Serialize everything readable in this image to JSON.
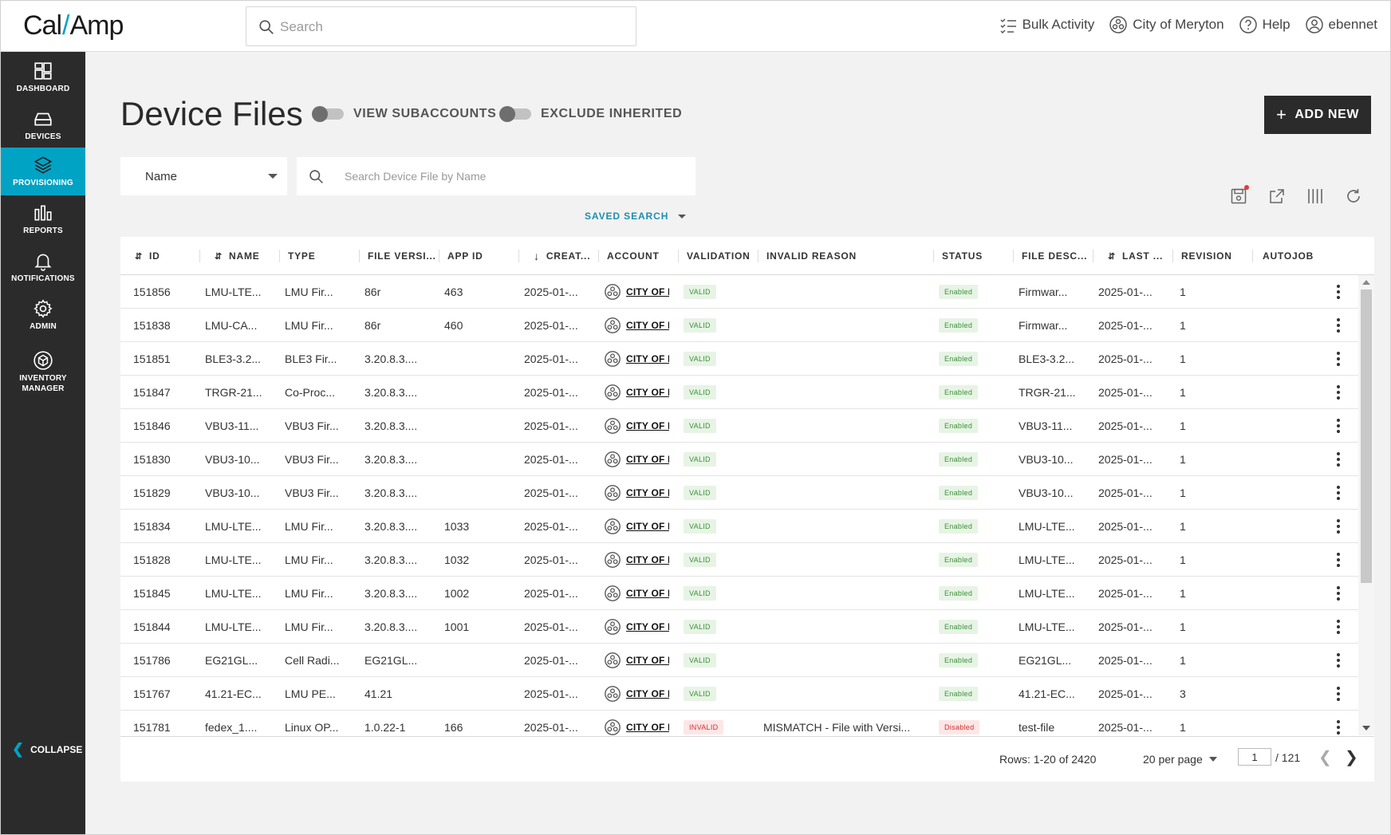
{
  "brand": {
    "logo_left": "Cal",
    "logo_slash": "/",
    "logo_right": "Amp"
  },
  "global_search": {
    "placeholder": "Search"
  },
  "top_actions": [
    {
      "label": "Bulk Activity",
      "icon": "checklist-icon"
    },
    {
      "label": "City of Meryton",
      "icon": "account-icon"
    },
    {
      "label": "Help",
      "icon": "help-icon"
    },
    {
      "label": "ebennet",
      "icon": "user-icon"
    }
  ],
  "sidebar": {
    "items": [
      {
        "label": "DASHBOARD",
        "icon": "dashboard-icon"
      },
      {
        "label": "DEVICES",
        "icon": "devices-icon"
      },
      {
        "label": "PROVISIONING",
        "icon": "layers-icon",
        "active": true
      },
      {
        "label": "REPORTS",
        "icon": "bar-chart-icon"
      },
      {
        "label": "NOTIFICATIONS",
        "icon": "bell-icon"
      },
      {
        "label": "ADMIN",
        "icon": "gear-icon"
      },
      {
        "label": "INVENTORY MANAGER",
        "icon": "inventory-icon"
      }
    ],
    "collapse_label": "COLLAPSE"
  },
  "page": {
    "title": "Device Files",
    "toggle_subaccounts": "VIEW SUBACCOUNTS",
    "toggle_inherited": "EXCLUDE INHERITED",
    "add_new": "ADD NEW"
  },
  "filters": {
    "field": "Name",
    "search_placeholder": "Search Device File by Name",
    "saved_search": "SAVED SEARCH"
  },
  "table": {
    "columns": [
      "ID",
      "NAME",
      "TYPE",
      "FILE VERSI...",
      "APP ID",
      "CREAT...",
      "ACCOUNT",
      "VALIDATION",
      "INVALID REASON",
      "STATUS",
      "FILE DESC...",
      "LAST ...",
      "REVISION",
      "AUTOJOB"
    ],
    "rows": [
      {
        "id": "151856",
        "name": "LMU-LTE...",
        "type": "LMU Fir...",
        "version": "86r",
        "app_id": "463",
        "created": "2025-01-...",
        "account": "CITY OF MERYTON",
        "validation": "VALID",
        "reason": "",
        "status": "Enabled",
        "desc": "Firmwar...",
        "last": "2025-01-...",
        "revision": "1"
      },
      {
        "id": "151838",
        "name": "LMU-CA...",
        "type": "LMU Fir...",
        "version": "86r",
        "app_id": "460",
        "created": "2025-01-...",
        "account": "CITY OF MERYTON",
        "validation": "VALID",
        "reason": "",
        "status": "Enabled",
        "desc": "Firmwar...",
        "last": "2025-01-...",
        "revision": "1"
      },
      {
        "id": "151851",
        "name": "BLE3-3.2...",
        "type": "BLE3 Fir...",
        "version": "3.20.8.3....",
        "app_id": "",
        "created": "2025-01-...",
        "account": "CITY OF MERYTON",
        "validation": "VALID",
        "reason": "",
        "status": "Enabled",
        "desc": "BLE3-3.2...",
        "last": "2025-01-...",
        "revision": "1"
      },
      {
        "id": "151847",
        "name": "TRGR-21...",
        "type": "Co-Proc...",
        "version": "3.20.8.3....",
        "app_id": "",
        "created": "2025-01-...",
        "account": "CITY OF MERYTON",
        "validation": "VALID",
        "reason": "",
        "status": "Enabled",
        "desc": "TRGR-21...",
        "last": "2025-01-...",
        "revision": "1"
      },
      {
        "id": "151846",
        "name": "VBU3-11...",
        "type": "VBU3 Fir...",
        "version": "3.20.8.3....",
        "app_id": "",
        "created": "2025-01-...",
        "account": "CITY OF MERYTON",
        "validation": "VALID",
        "reason": "",
        "status": "Enabled",
        "desc": "VBU3-11...",
        "last": "2025-01-...",
        "revision": "1"
      },
      {
        "id": "151830",
        "name": "VBU3-10...",
        "type": "VBU3 Fir...",
        "version": "3.20.8.3....",
        "app_id": "",
        "created": "2025-01-...",
        "account": "CITY OF MERYTON",
        "validation": "VALID",
        "reason": "",
        "status": "Enabled",
        "desc": "VBU3-10...",
        "last": "2025-01-...",
        "revision": "1"
      },
      {
        "id": "151829",
        "name": "VBU3-10...",
        "type": "VBU3 Fir...",
        "version": "3.20.8.3....",
        "app_id": "",
        "created": "2025-01-...",
        "account": "CITY OF MERYTON",
        "validation": "VALID",
        "reason": "",
        "status": "Enabled",
        "desc": "VBU3-10...",
        "last": "2025-01-...",
        "revision": "1"
      },
      {
        "id": "151834",
        "name": "LMU-LTE...",
        "type": "LMU Fir...",
        "version": "3.20.8.3....",
        "app_id": "1033",
        "created": "2025-01-...",
        "account": "CITY OF MERYTON",
        "validation": "VALID",
        "reason": "",
        "status": "Enabled",
        "desc": "LMU-LTE...",
        "last": "2025-01-...",
        "revision": "1"
      },
      {
        "id": "151828",
        "name": "LMU-LTE...",
        "type": "LMU Fir...",
        "version": "3.20.8.3....",
        "app_id": "1032",
        "created": "2025-01-...",
        "account": "CITY OF MERYTON",
        "validation": "VALID",
        "reason": "",
        "status": "Enabled",
        "desc": "LMU-LTE...",
        "last": "2025-01-...",
        "revision": "1"
      },
      {
        "id": "151845",
        "name": "LMU-LTE...",
        "type": "LMU Fir...",
        "version": "3.20.8.3....",
        "app_id": "1002",
        "created": "2025-01-...",
        "account": "CITY OF MERYTON",
        "validation": "VALID",
        "reason": "",
        "status": "Enabled",
        "desc": "LMU-LTE...",
        "last": "2025-01-...",
        "revision": "1"
      },
      {
        "id": "151844",
        "name": "LMU-LTE...",
        "type": "LMU Fir...",
        "version": "3.20.8.3....",
        "app_id": "1001",
        "created": "2025-01-...",
        "account": "CITY OF MERYTON",
        "validation": "VALID",
        "reason": "",
        "status": "Enabled",
        "desc": "LMU-LTE...",
        "last": "2025-01-...",
        "revision": "1"
      },
      {
        "id": "151786",
        "name": "EG21GL...",
        "type": "Cell Radi...",
        "version": "EG21GL...",
        "app_id": "",
        "created": "2025-01-...",
        "account": "CITY OF MERYTON",
        "validation": "VALID",
        "reason": "",
        "status": "Enabled",
        "desc": "EG21GL...",
        "last": "2025-01-...",
        "revision": "1"
      },
      {
        "id": "151767",
        "name": "41.21-EC...",
        "type": "LMU PE...",
        "version": "41.21",
        "app_id": "",
        "created": "2025-01-...",
        "account": "CITY OF MERYTON",
        "validation": "VALID",
        "reason": "",
        "status": "Enabled",
        "desc": "41.21-EC...",
        "last": "2025-01-...",
        "revision": "3"
      },
      {
        "id": "151781",
        "name": "fedex_1....",
        "type": "Linux OP...",
        "version": "1.0.22-1",
        "app_id": "166",
        "created": "2025-01-...",
        "account": "CITY OF MERYTON",
        "validation": "INVALID",
        "reason": "MISMATCH - File with Versi...",
        "status": "Disabled",
        "desc": "test-file",
        "last": "2025-01-...",
        "revision": "1"
      }
    ]
  },
  "pagination": {
    "rows_info": "Rows: 1-20 of 2420",
    "per_page": "20 per page",
    "current_page": "1",
    "total_pages": "/ 121"
  },
  "colors": {
    "accent": "#00a3c4",
    "sidebar": "#2b2b2b",
    "valid": "#3b8f3a",
    "invalid": "#d32f2f"
  }
}
